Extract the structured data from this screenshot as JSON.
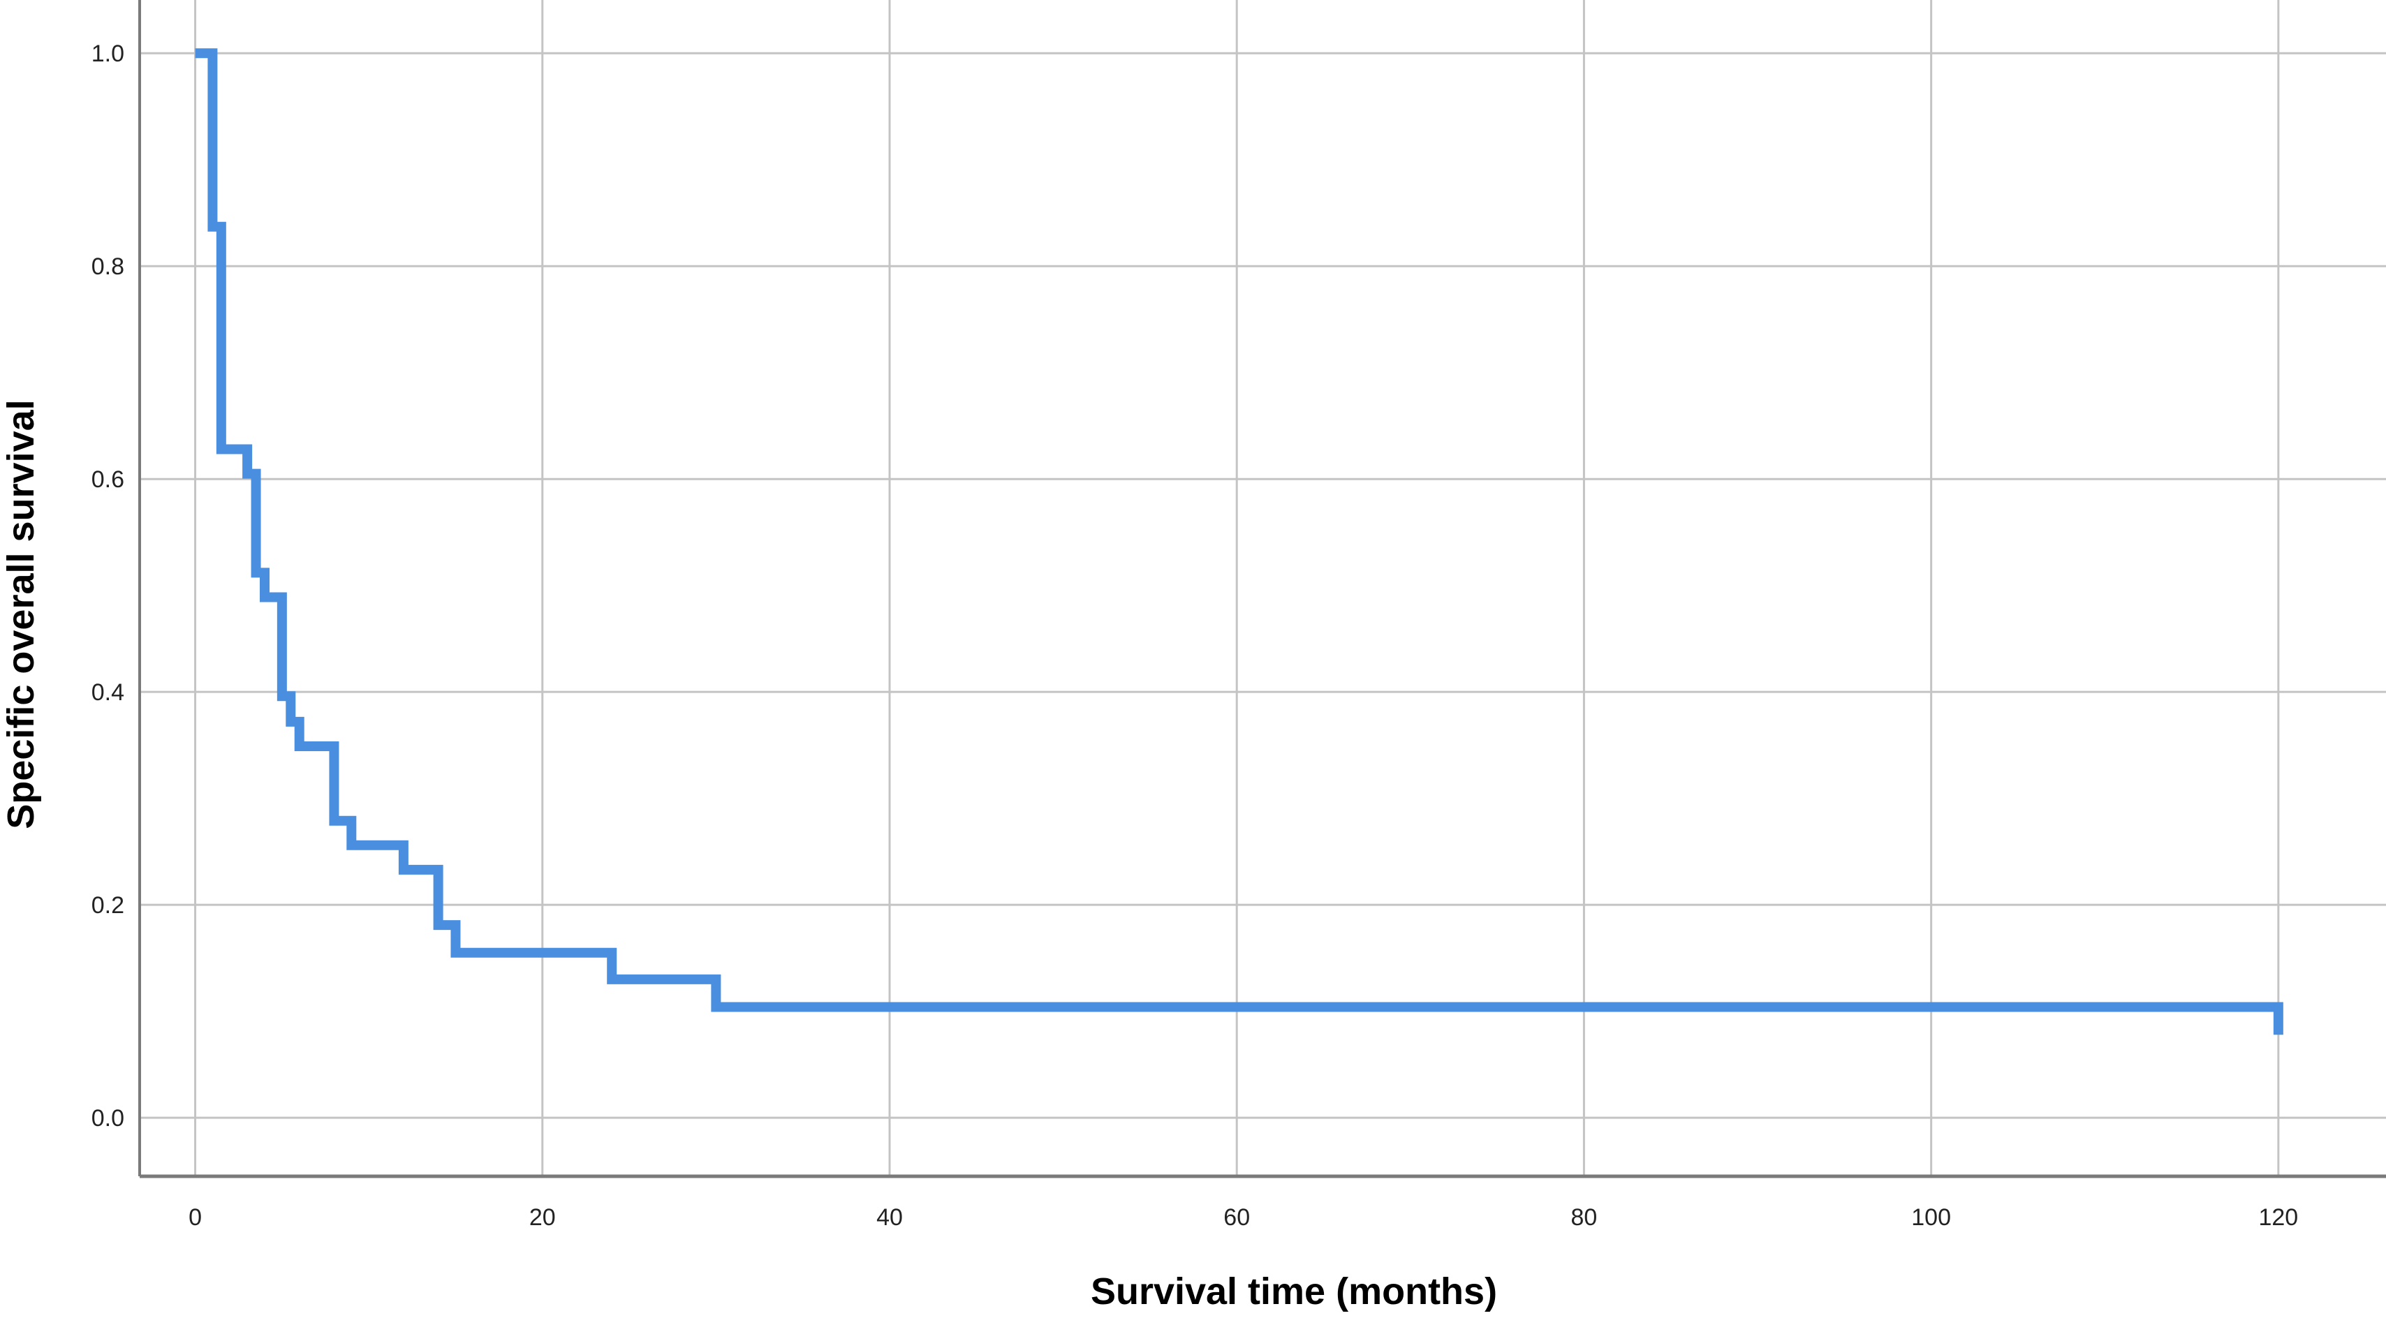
{
  "chart_data": {
    "type": "line",
    "subtype": "kaplan-meier-step",
    "title": "",
    "xlabel": "Survival time (months)",
    "ylabel": "Specific overall survival",
    "xlim": [
      -3.2,
      126.2
    ],
    "ylim": [
      -0.055,
      1.05
    ],
    "x_ticks": [
      0,
      20,
      40,
      60,
      80,
      100,
      120
    ],
    "x_tick_labels": [
      "0",
      "20",
      "40",
      "60",
      "80",
      "100",
      "120"
    ],
    "y_ticks": [
      0.0,
      0.2,
      0.4,
      0.6,
      0.8,
      1.0
    ],
    "y_tick_labels": [
      "0.0",
      "0.2",
      "0.4",
      "0.6",
      "0.8",
      "1.0"
    ],
    "grid": true,
    "legend": "none",
    "series": [
      {
        "color": "#4a8ee0",
        "step": "post",
        "x": [
          0,
          1,
          1.5,
          3,
          3.5,
          4,
          5,
          5.5,
          6,
          8,
          9,
          12,
          14,
          15,
          24,
          30,
          120
        ],
        "y": [
          1.0,
          0.837,
          0.628,
          0.605,
          0.512,
          0.489,
          0.396,
          0.372,
          0.349,
          0.279,
          0.256,
          0.233,
          0.181,
          0.155,
          0.13,
          0.104,
          0.078
        ]
      }
    ]
  }
}
